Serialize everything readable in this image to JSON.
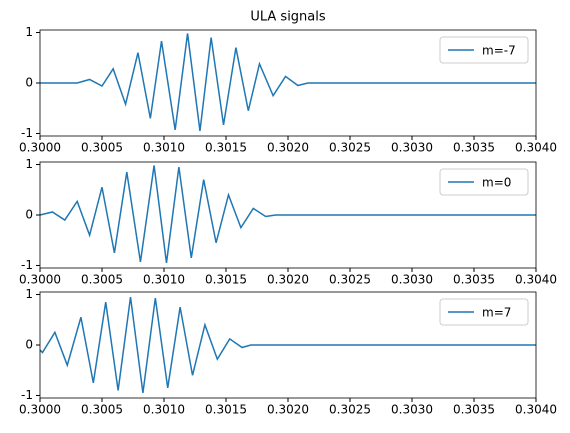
{
  "chart_data": [
    {
      "type": "line",
      "title": "ULA signals",
      "legend": "upper right",
      "xlim": [
        0.3,
        0.304
      ],
      "ylim": [
        -1.05,
        1.05
      ],
      "xticks": [
        {
          "value": 0.3,
          "label": "0.3000"
        },
        {
          "value": 0.3005,
          "label": "0.3005"
        },
        {
          "value": 0.301,
          "label": "0.3010"
        },
        {
          "value": 0.3015,
          "label": "0.3015"
        },
        {
          "value": 0.302,
          "label": "0.3020"
        },
        {
          "value": 0.3025,
          "label": "0.3025"
        },
        {
          "value": 0.303,
          "label": "0.3030"
        },
        {
          "value": 0.3035,
          "label": "0.3035"
        },
        {
          "value": 0.304,
          "label": "0.3040"
        }
      ],
      "yticks": [
        -1,
        0,
        1
      ],
      "x": [
        0.3,
        0.3003,
        0.3004,
        0.3005,
        0.30059,
        0.30069,
        0.30079,
        0.30089,
        0.30098,
        0.30109,
        0.30119,
        0.30129,
        0.30138,
        0.30148,
        0.30158,
        0.30168,
        0.30177,
        0.30188,
        0.30198,
        0.30208,
        0.30216,
        0.304
      ],
      "series": [
        {
          "name": "m=-7",
          "color": "#1f77b4",
          "values": [
            0,
            0,
            0.07,
            -0.06,
            0.28,
            -0.42,
            0.6,
            -0.7,
            0.83,
            -0.93,
            0.98,
            -0.95,
            0.9,
            -0.83,
            0.7,
            -0.55,
            0.38,
            -0.25,
            0.13,
            -0.05,
            0,
            0
          ]
        }
      ]
    },
    {
      "type": "line",
      "legend": "upper right",
      "xlim": [
        0.3,
        0.304
      ],
      "ylim": [
        -1.05,
        1.05
      ],
      "xticks": [
        {
          "value": 0.3,
          "label": "0.3000"
        },
        {
          "value": 0.3005,
          "label": "0.3005"
        },
        {
          "value": 0.301,
          "label": "0.3010"
        },
        {
          "value": 0.3015,
          "label": "0.3015"
        },
        {
          "value": 0.302,
          "label": "0.3020"
        },
        {
          "value": 0.3025,
          "label": "0.3025"
        },
        {
          "value": 0.303,
          "label": "0.3030"
        },
        {
          "value": 0.3035,
          "label": "0.3035"
        },
        {
          "value": 0.304,
          "label": "0.3040"
        }
      ],
      "yticks": [
        -1,
        0,
        1
      ],
      "x": [
        0.3,
        0.3001,
        0.3002,
        0.3003,
        0.3004,
        0.3005,
        0.3006,
        0.3007,
        0.30081,
        0.30092,
        0.30102,
        0.30112,
        0.30122,
        0.30132,
        0.30142,
        0.30152,
        0.30162,
        0.30172,
        0.30182,
        0.3019,
        0.304
      ],
      "series": [
        {
          "name": "m=0",
          "color": "#1f77b4",
          "values": [
            0,
            0.06,
            -0.1,
            0.27,
            -0.4,
            0.55,
            -0.75,
            0.85,
            -0.93,
            0.98,
            -0.95,
            0.95,
            -0.85,
            0.7,
            -0.55,
            0.4,
            -0.25,
            0.13,
            -0.03,
            0,
            0
          ]
        }
      ]
    },
    {
      "type": "line",
      "legend": "upper right",
      "xlim": [
        0.3,
        0.304
      ],
      "ylim": [
        -1.05,
        1.05
      ],
      "xticks": [
        {
          "value": 0.3,
          "label": "0.3000"
        },
        {
          "value": 0.3005,
          "label": "0.3005"
        },
        {
          "value": 0.301,
          "label": "0.3010"
        },
        {
          "value": 0.3015,
          "label": "0.3015"
        },
        {
          "value": 0.302,
          "label": "0.3020"
        },
        {
          "value": 0.3025,
          "label": "0.3025"
        },
        {
          "value": 0.303,
          "label": "0.3030"
        },
        {
          "value": 0.3035,
          "label": "0.3035"
        },
        {
          "value": 0.304,
          "label": "0.3040"
        }
      ],
      "yticks": [
        -1,
        0,
        1
      ],
      "x": [
        0.3,
        0.30002,
        0.30012,
        0.30022,
        0.30033,
        0.30043,
        0.30053,
        0.30063,
        0.30073,
        0.30083,
        0.30093,
        0.30103,
        0.30113,
        0.30123,
        0.30133,
        0.30143,
        0.30153,
        0.30163,
        0.3017,
        0.304
      ],
      "series": [
        {
          "name": "m=7",
          "color": "#1f77b4",
          "values": [
            -0.1,
            -0.15,
            0.25,
            -0.4,
            0.55,
            -0.75,
            0.85,
            -0.9,
            0.95,
            -0.95,
            0.93,
            -0.85,
            0.75,
            -0.6,
            0.4,
            -0.28,
            0.12,
            -0.05,
            0,
            0
          ]
        }
      ]
    }
  ]
}
